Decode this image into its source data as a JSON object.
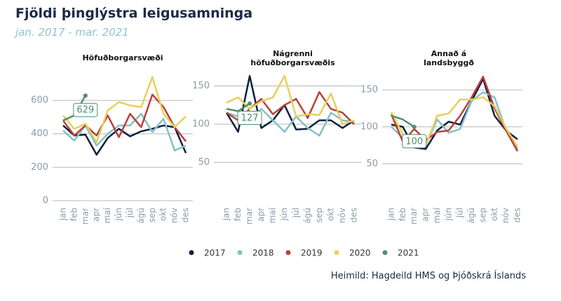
{
  "title": "Fjöldi þinglýstra leigusamninga",
  "subtitle": "jan. 2017 - mar. 2021",
  "source": "Heimild: Hagdeild HMS og Þjóðskrá Íslands",
  "chart_data": [
    {
      "type": "line",
      "title": "Höfuðborgarsvæði",
      "categories": [
        "jan",
        "feb",
        "mar",
        "apr",
        "maí",
        "jún",
        "júl",
        "ágú",
        "sep",
        "okt",
        "nóv",
        "des"
      ],
      "ylim": [
        0,
        760
      ],
      "yticks": [
        0,
        200,
        400,
        600
      ],
      "grid": true,
      "series": [
        {
          "name": "2017",
          "color": "#0c1f3f",
          "values": [
            450,
            390,
            395,
            275,
            375,
            430,
            385,
            415,
            430,
            450,
            440,
            285
          ]
        },
        {
          "name": "2018",
          "color": "#85c1c8",
          "values": [
            420,
            360,
            450,
            330,
            400,
            450,
            450,
            520,
            410,
            490,
            300,
            330
          ]
        },
        {
          "name": "2019",
          "color": "#b8403a",
          "values": [
            480,
            390,
            450,
            390,
            510,
            380,
            520,
            440,
            635,
            560,
            440,
            355
          ]
        },
        {
          "name": "2020",
          "color": "#e8cf5a",
          "values": [
            510,
            430,
            460,
            350,
            540,
            590,
            570,
            560,
            740,
            520,
            440,
            505
          ]
        },
        {
          "name": "2021",
          "color": "#4e8f6d",
          "values": [
            480,
            510,
            629,
            null,
            null,
            null,
            null,
            null,
            null,
            null,
            null,
            null
          ]
        }
      ]
    },
    {
      "type": "line",
      "title": "Nágrenni höfuðborgarsvæðis",
      "categories": [
        "jan",
        "feb",
        "mar",
        "apr",
        "maí",
        "jún",
        "júl",
        "ágú",
        "sep",
        "okt",
        "nóv",
        "des"
      ],
      "ylim": [
        0,
        166
      ],
      "yticks": [
        50,
        100,
        150
      ],
      "grid": true,
      "series": [
        {
          "name": "2017",
          "color": "#0c1f3f",
          "values": [
            115,
            90,
            163,
            95,
            105,
            125,
            93,
            94,
            105,
            105,
            95,
            105
          ]
        },
        {
          "name": "2018",
          "color": "#85c1c8",
          "values": [
            115,
            110,
            105,
            120,
            105,
            90,
            110,
            95,
            85,
            115,
            105,
            103
          ]
        },
        {
          "name": "2019",
          "color": "#b8403a",
          "values": [
            115,
            105,
            120,
            133,
            113,
            125,
            133,
            108,
            142,
            120,
            115,
            100
          ]
        },
        {
          "name": "2020",
          "color": "#e8cf5a",
          "values": [
            128,
            135,
            120,
            130,
            135,
            163,
            110,
            113,
            112,
            140,
            100,
            105
          ]
        },
        {
          "name": "2021",
          "color": "#4e8f6d",
          "values": [
            120,
            117,
            127,
            null,
            null,
            null,
            null,
            null,
            null,
            null,
            null,
            null
          ]
        }
      ]
    },
    {
      "type": "line",
      "title": "Annað á landsbyggð",
      "categories": [
        "jan",
        "feb",
        "mar",
        "apr",
        "maí",
        "jún",
        "júl",
        "ágú",
        "sep",
        "okt",
        "nóv",
        "des"
      ],
      "ylim": [
        0,
        172
      ],
      "yticks": [
        50,
        100,
        150
      ],
      "grid": true,
      "series": [
        {
          "name": "2017",
          "color": "#0c1f3f",
          "values": [
            103,
            100,
            72,
            70,
            95,
            107,
            103,
            135,
            165,
            115,
            95,
            83
          ]
        },
        {
          "name": "2018",
          "color": "#85c1c8",
          "values": [
            100,
            85,
            80,
            75,
            110,
            92,
            97,
            135,
            147,
            140,
            95,
            70
          ]
        },
        {
          "name": "2019",
          "color": "#b8403a",
          "values": [
            117,
            80,
            97,
            82,
            93,
            95,
            115,
            140,
            168,
            125,
            95,
            67
          ]
        },
        {
          "name": "2020",
          "color": "#e8cf5a",
          "values": [
            120,
            90,
            82,
            75,
            115,
            118,
            137,
            137,
            140,
            128,
            98,
            73
          ]
        },
        {
          "name": "2021",
          "color": "#4e8f6d",
          "values": [
            115,
            110,
            100,
            null,
            null,
            null,
            null,
            null,
            null,
            null,
            null,
            null
          ]
        }
      ]
    }
  ]
}
